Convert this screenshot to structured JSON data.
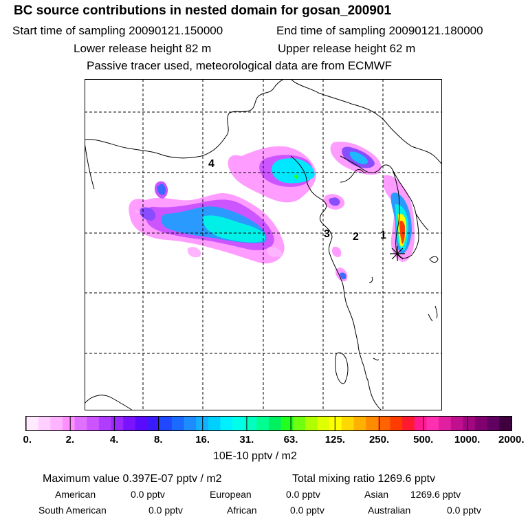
{
  "header": {
    "title": "BC  source contributions in nested domain for gosan_200901",
    "start_time": "Start time of sampling 20090121.150000",
    "end_time": "End time of sampling 20090121.180000",
    "lower_release": "Lower release height   82 m",
    "upper_release": "Upper release height   62 m",
    "tracer_note": "Passive tracer used, meteorological data are from ECMWF"
  },
  "map": {
    "region_labels": [
      "4",
      "3",
      "2",
      "1"
    ]
  },
  "colorbar": {
    "colors": [
      "#ffeaff",
      "#ffd0ff",
      "#ffb4ff",
      "#ff90ff",
      "#e070ff",
      "#cc55ff",
      "#b03cff",
      "#9a28ff",
      "#7a14ff",
      "#5a0aff",
      "#3a1aff",
      "#2048ff",
      "#1a6aff",
      "#1e8cff",
      "#12b0ff",
      "#00d0ff",
      "#00f0ff",
      "#00ffe8",
      "#00ffc0",
      "#00ff90",
      "#00f060",
      "#20ff20",
      "#70ff10",
      "#b0ff00",
      "#e0ff00",
      "#ffff00",
      "#ffd800",
      "#ffb000",
      "#ff8c00",
      "#ff6400",
      "#ff3c00",
      "#ff1a30",
      "#ff1a90",
      "#ff30b0",
      "#e020a0",
      "#c01090",
      "#a00880",
      "#800070",
      "#600060",
      "#400040"
    ],
    "tick_labels": [
      "0.",
      "2.",
      "4.",
      "8.",
      "16.",
      "31.",
      "63.",
      "125.",
      "250.",
      "500.",
      "1000.",
      "2000."
    ],
    "units": "10E-10 pptv / m2"
  },
  "summary": {
    "max_value": "Maximum value  0.397E-07 pptv / m2",
    "total_mixing": "Total mixing ratio     1269.6 pptv",
    "rows": [
      [
        {
          "label": "American",
          "value": "0.0 pptv"
        },
        {
          "label": "European",
          "value": "0.0 pptv"
        },
        {
          "label": "Asian",
          "value": "1269.6 pptv"
        }
      ],
      [
        {
          "label": "South American",
          "value": "0.0 pptv"
        },
        {
          "label": "African",
          "value": "0.0 pptv"
        },
        {
          "label": "Australian",
          "value": "0.0 pptv"
        }
      ]
    ]
  }
}
